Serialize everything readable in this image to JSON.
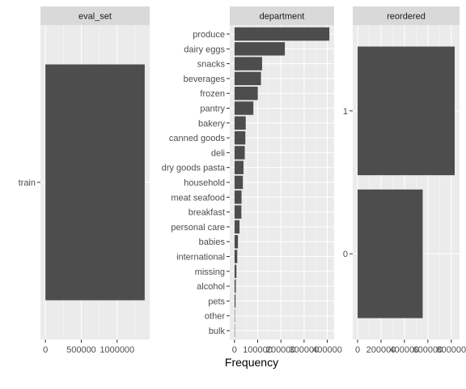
{
  "figure": {
    "xlabel": "Frequency",
    "colors": {
      "panel_bg": "#ebebeb",
      "grid_major": "#ffffff",
      "strip_bg": "#d9d9d9",
      "bar": "#4d4d4d",
      "text": "#4d4d4d",
      "strip_text": "#1a1a1a",
      "tick": "#333333"
    }
  },
  "chart_data": [
    {
      "type": "bar",
      "orientation": "horizontal",
      "facet": "eval_set",
      "categories": [
        "train"
      ],
      "values": [
        1384617
      ],
      "xlim": [
        0,
        1384617
      ],
      "xticks": [
        0,
        500000,
        1000000
      ],
      "xtick_labels": [
        "0",
        "500000",
        "1000000"
      ],
      "grid": true
    },
    {
      "type": "bar",
      "orientation": "horizontal",
      "facet": "department",
      "categories": [
        "produce",
        "dairy eggs",
        "snacks",
        "beverages",
        "frozen",
        "pantry",
        "bakery",
        "canned goods",
        "deli",
        "dry goods pasta",
        "household",
        "meat seafood",
        "breakfast",
        "personal care",
        "babies",
        "international",
        "missing",
        "alcohol",
        "pets",
        "other",
        "bulk"
      ],
      "values": [
        409087,
        217051,
        118862,
        114046,
        100426,
        81242,
        48394,
        46799,
        44291,
        38713,
        35986,
        30307,
        29500,
        21570,
        14941,
        11902,
        8251,
        5598,
        4497,
        1795,
        1359
      ],
      "xlim": [
        0,
        409087
      ],
      "xticks": [
        0,
        100000,
        200000,
        300000,
        400000
      ],
      "xtick_labels": [
        "0",
        "100000",
        "200000",
        "300000",
        "400000"
      ],
      "grid": true
    },
    {
      "type": "bar",
      "orientation": "horizontal",
      "facet": "reordered",
      "categories": [
        "1",
        "0"
      ],
      "values": [
        828824,
        555793
      ],
      "xlim": [
        0,
        828824
      ],
      "xticks": [
        0,
        200000,
        400000,
        600000,
        800000
      ],
      "xtick_labels": [
        "0",
        "200000",
        "400000",
        "600000",
        "800000"
      ],
      "grid": true
    }
  ]
}
